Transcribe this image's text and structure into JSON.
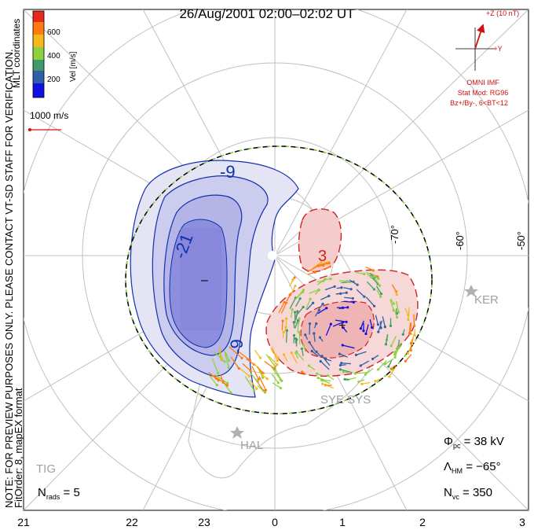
{
  "title": "26/Aug/2001 02:00–02:02 UT",
  "coordinates": "MLT coordinates",
  "colorbar": {
    "label": "Vel [m/s]",
    "ticks": [
      "600",
      "400",
      "200"
    ],
    "colors": [
      "#e8281c",
      "#ff7a10",
      "#f5b81c",
      "#8fd040",
      "#3f9a6a",
      "#2f5fa8",
      "#1010e0"
    ]
  },
  "scale_vector": "1000 m/s",
  "side_note": "NOTE: FOR PREVIEW PURPOSES ONLY. PLEASE CONTACT VT-SD STAFF FOR VERIFICATION.",
  "fit_note": "FitOrder: 8, mapEX format",
  "imf": {
    "z_label": "+Z (10 nT)",
    "y_label": "+Y",
    "title": "OMNI IMF",
    "model": "Stat Mod: RG96",
    "condition": "Bz+/By-, 6<BT<12"
  },
  "contours": {
    "neg_a": "-9",
    "neg_b": "-21",
    "neg_c": "-9",
    "neg_min": "–",
    "pos": "3",
    "pos_max": "+"
  },
  "latitudes": [
    "-70°",
    "-60°",
    "-50°"
  ],
  "sites": [
    "KER",
    "SYE SYS",
    "HAL",
    "TIG"
  ],
  "stats": {
    "nrads_sym": "N",
    "nrads_sub": "rads",
    "nrads_val": "= 5",
    "phi_sym": "Φ",
    "phi_sub": "pc",
    "phi_val": "= 38 kV",
    "lambda_sym": "Λ",
    "lambda_sub": "HM",
    "lambda_val": "= −65°",
    "nvc_sym": "N",
    "nvc_sub": "vc",
    "nvc_val": "= 350"
  },
  "mlt_axis": [
    "21",
    "22",
    "23",
    "0",
    "1",
    "2",
    "3"
  ]
}
